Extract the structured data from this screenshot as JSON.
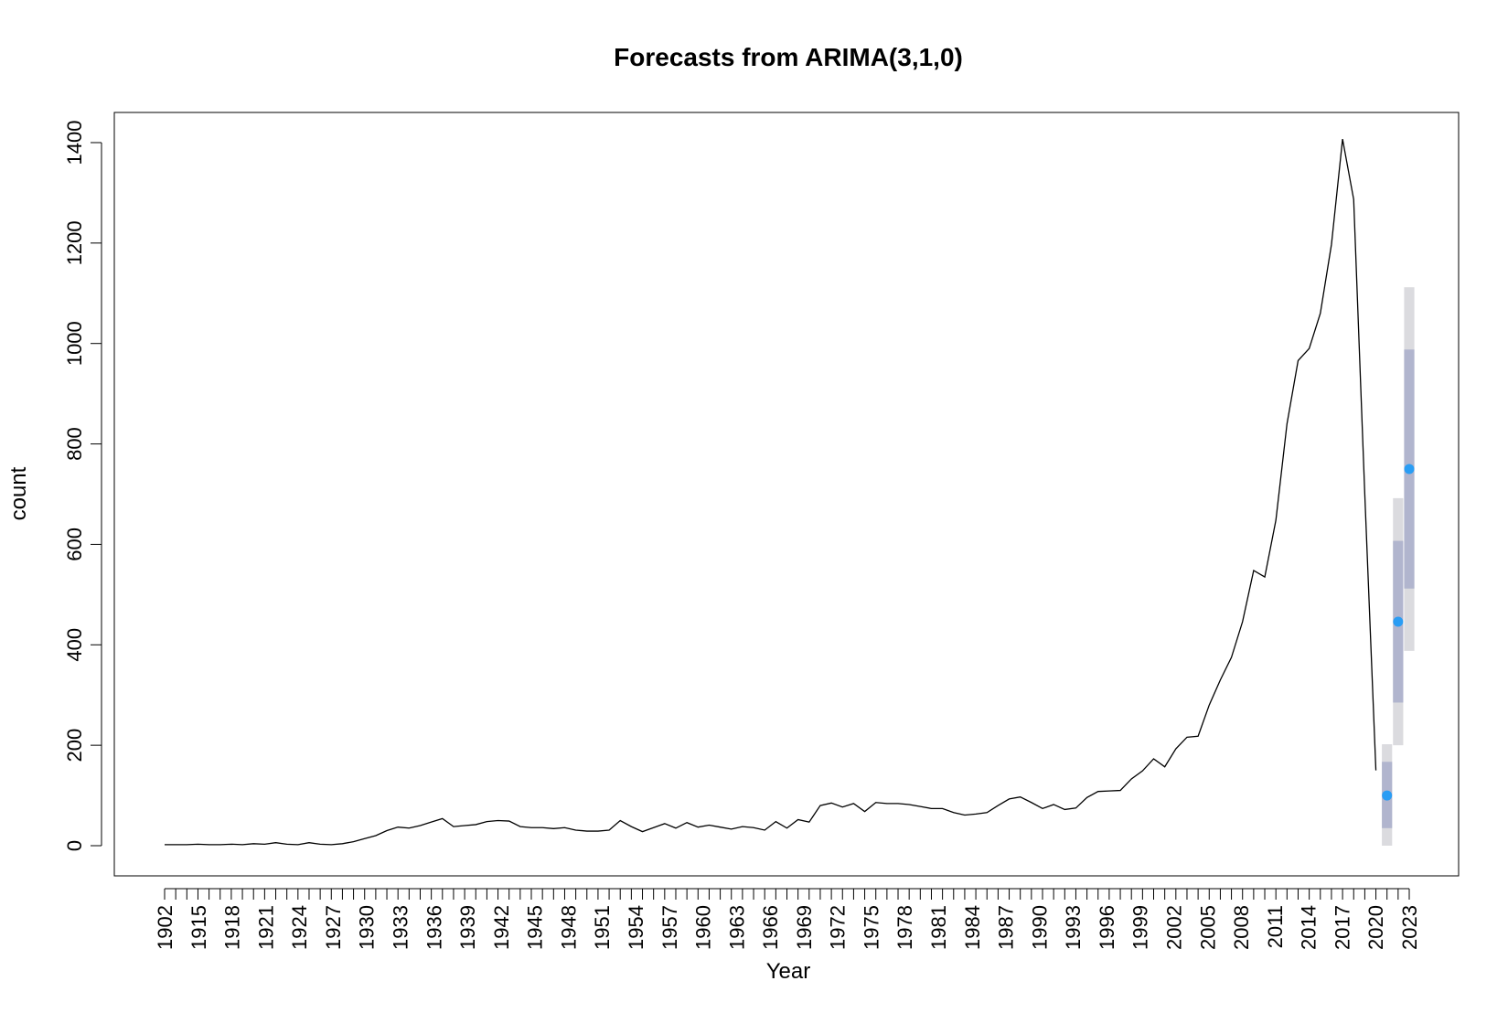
{
  "chart_data": {
    "type": "line",
    "title": "Forecasts from ARIMA(3,1,0)",
    "xlabel": "Year",
    "ylabel": "count",
    "xlim": [
      1902,
      2023
    ],
    "ylim": [
      0,
      1400
    ],
    "grid": false,
    "x_tick_labels": [
      "1902",
      "1915",
      "1918",
      "1921",
      "1924",
      "1927",
      "1930",
      "1933",
      "1936",
      "1939",
      "1942",
      "1945",
      "1948",
      "1951",
      "1954",
      "1957",
      "1960",
      "1963",
      "1966",
      "1969",
      "1972",
      "1975",
      "1978",
      "1981",
      "1984",
      "1987",
      "1990",
      "1993",
      "1996",
      "1999",
      "2002",
      "2005",
      "2008",
      "2011",
      "2014",
      "2017",
      "2020",
      "2023"
    ],
    "y_ticks": [
      0,
      200,
      400,
      600,
      800,
      1000,
      1200,
      1400
    ],
    "series": [
      {
        "values": [
          2,
          2,
          2,
          3,
          2,
          2,
          3,
          2,
          4,
          3,
          6,
          3,
          2,
          6,
          3,
          2,
          4,
          8,
          14,
          20,
          30,
          37,
          35,
          40,
          47,
          54,
          38,
          40,
          42,
          48,
          50,
          49,
          38,
          36,
          36,
          34,
          36,
          31,
          29,
          29,
          31,
          50,
          38,
          28,
          36,
          44,
          35,
          46,
          37,
          41,
          37,
          33,
          38,
          36,
          31,
          48,
          35,
          52,
          47,
          80,
          85,
          77,
          84,
          68,
          86,
          84,
          84,
          82,
          78,
          74,
          74,
          66,
          61,
          63,
          66,
          80,
          93,
          97,
          86,
          74,
          82,
          72,
          75,
          96,
          108,
          109,
          110,
          133,
          149,
          173,
          157,
          193,
          216,
          218,
          280,
          330,
          375,
          446,
          548,
          535,
          648,
          840,
          966,
          990,
          1060,
          1197,
          1407,
          1287,
          700,
          150
        ],
        "color": "#000000"
      }
    ],
    "forecast": {
      "point_color": "#2a9df4",
      "band80_color": "#b1b5ce",
      "band95_color": "#dbdbdf",
      "steps": [
        {
          "point": 100,
          "lo80": 35,
          "hi80": 167,
          "lo95": 0,
          "hi95": 202
        },
        {
          "point": 446,
          "lo80": 285,
          "hi80": 607,
          "lo95": 200,
          "hi95": 692
        },
        {
          "point": 750,
          "lo80": 512,
          "hi80": 988,
          "lo95": 388,
          "hi95": 1112
        }
      ]
    }
  }
}
